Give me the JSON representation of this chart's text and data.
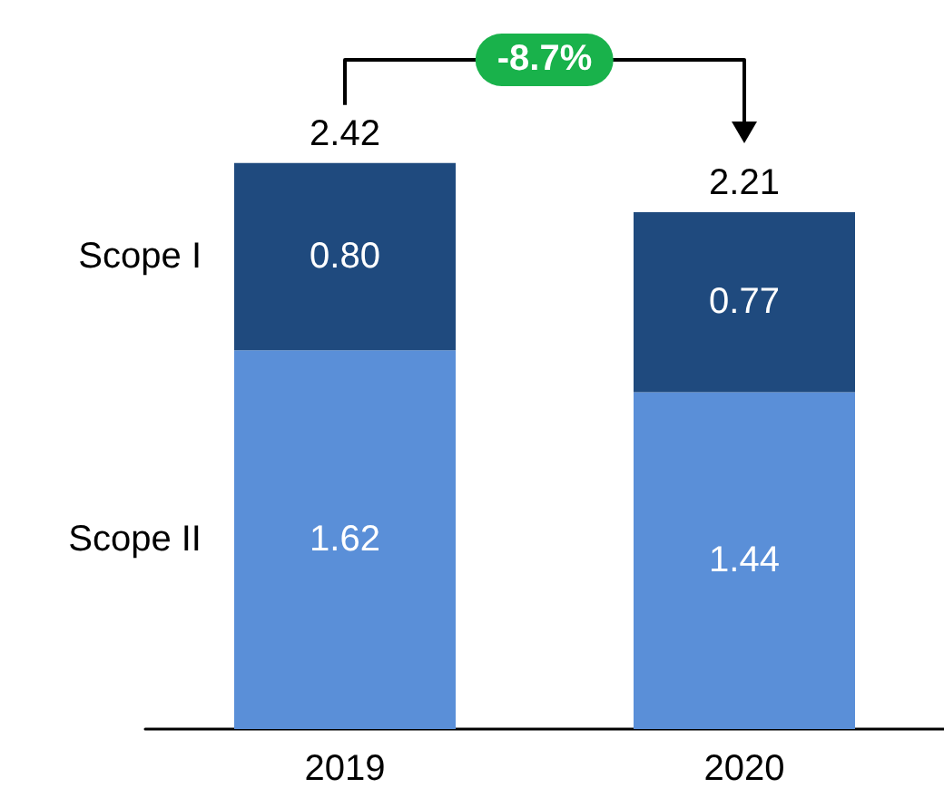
{
  "chart_data": {
    "type": "bar",
    "stacked": true,
    "categories": [
      "2019",
      "2020"
    ],
    "series": [
      {
        "name": "Scope II",
        "color": "#5a8fd8",
        "values": [
          1.62,
          1.44
        ],
        "value_labels": [
          "1.62",
          "1.44"
        ]
      },
      {
        "name": "Scope I",
        "color": "#1f4a7e",
        "values": [
          0.8,
          0.77
        ],
        "value_labels": [
          "0.80",
          "0.77"
        ]
      }
    ],
    "totals": [
      "2.42",
      "2.21"
    ],
    "annotations": [
      "-8.7%"
    ]
  }
}
